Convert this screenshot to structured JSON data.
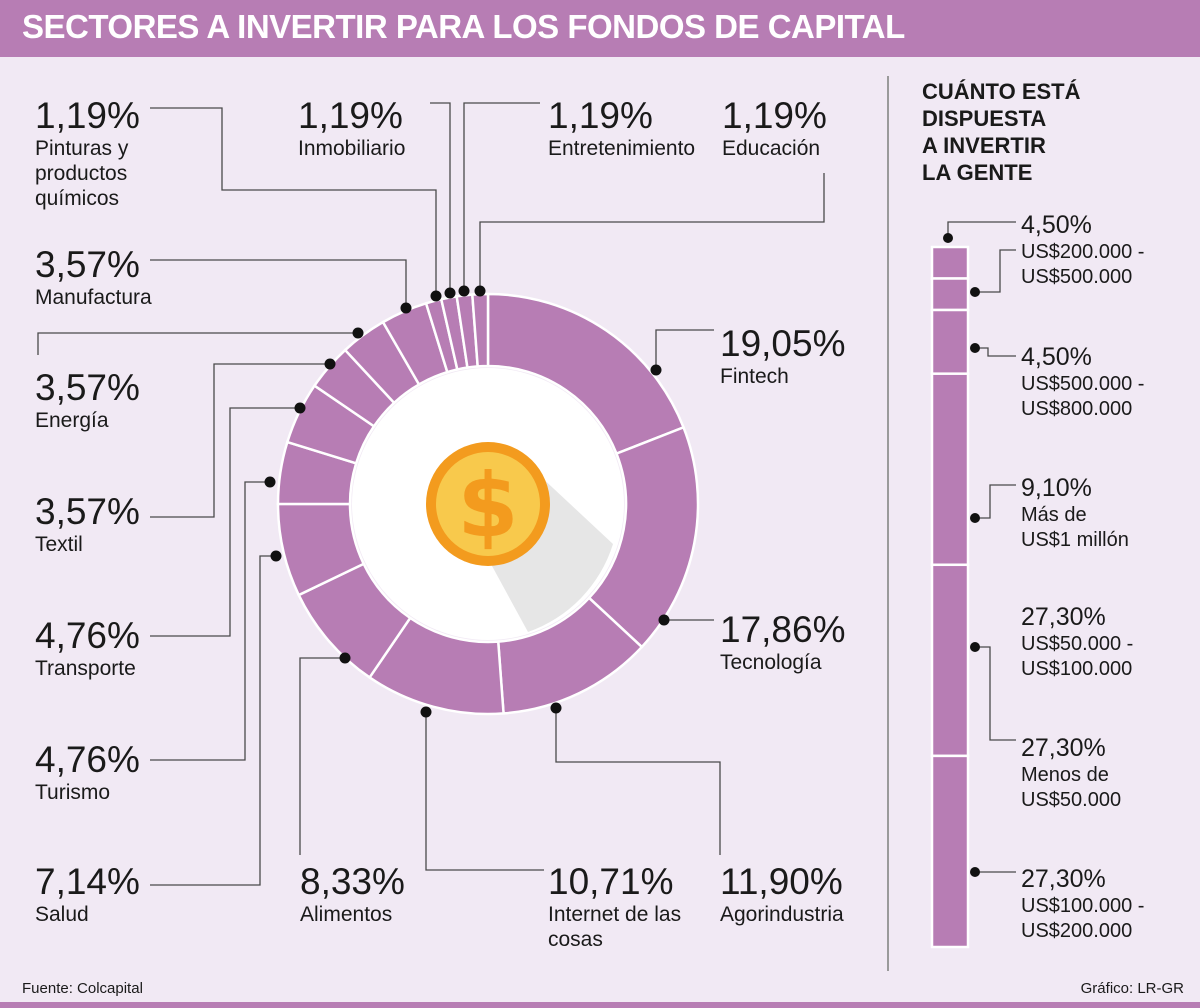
{
  "header": {
    "title": "SECTORES A INVERTIR PARA LOS FONDOS DE CAPITAL"
  },
  "colors": {
    "accent": "#b77db4",
    "background": "#f1e9f4",
    "coin": "#f39b1e",
    "coin_inner": "#f8c94c"
  },
  "icons": {
    "center": "dollar-coin-icon"
  },
  "chart_data": [
    {
      "type": "donut",
      "categories": [
        "Fintech",
        "Tecnología",
        "Agorindustria",
        "Internet de las cosas",
        "Alimentos",
        "Salud",
        "Turismo",
        "Transporte",
        "Textil",
        "Energía",
        "Manufactura",
        "Pinturas y productos químicos",
        "Inmobiliario",
        "Entretenimiento",
        "Educación"
      ],
      "values": [
        19.05,
        17.86,
        11.9,
        10.71,
        8.33,
        7.14,
        4.76,
        4.76,
        3.57,
        3.57,
        3.57,
        1.19,
        1.19,
        1.19,
        1.19
      ],
      "labels": [
        {
          "pct": "19,05%",
          "name": "Fintech"
        },
        {
          "pct": "17,86%",
          "name": "Tecnología"
        },
        {
          "pct": "11,90%",
          "name": "Agorindustria"
        },
        {
          "pct": "10,71%",
          "name": "Internet de las cosas"
        },
        {
          "pct": "8,33%",
          "name": "Alimentos"
        },
        {
          "pct": "7,14%",
          "name": "Salud"
        },
        {
          "pct": "4,76%",
          "name": "Turismo"
        },
        {
          "pct": "4,76%",
          "name": "Transporte"
        },
        {
          "pct": "3,57%",
          "name": "Textil"
        },
        {
          "pct": "3,57%",
          "name": "Energía"
        },
        {
          "pct": "3,57%",
          "name": "Manufactura"
        },
        {
          "pct": "1,19%",
          "name": "Pinturas y productos químicos"
        },
        {
          "pct": "1,19%",
          "name": "Inmobiliario"
        },
        {
          "pct": "1,19%",
          "name": "Entretenimiento"
        },
        {
          "pct": "1,19%",
          "name": "Educación"
        }
      ]
    },
    {
      "type": "bar",
      "title": "CUÁNTO ESTÁ DISPUESTA A INVERTIR LA GENTE",
      "title_lines": [
        "CUÁNTO ESTÁ",
        "DISPUESTA",
        "A INVERTIR",
        "LA GENTE"
      ],
      "categories": [
        "US$200.000 - US$500.000",
        "US$500.000 - US$800.000",
        "Más de US$1 millón",
        "US$50.000 - US$100.000",
        "Menos de US$50.000",
        "US$100.000 - US$200.000"
      ],
      "values": [
        4.5,
        4.5,
        9.1,
        27.3,
        27.3,
        27.3
      ],
      "labels": [
        {
          "pct": "4,50%",
          "line1": "US$200.000 -",
          "line2": "US$500.000"
        },
        {
          "pct": "4,50%",
          "line1": "US$500.000 -",
          "line2": "US$800.000"
        },
        {
          "pct": "9,10%",
          "line1": "Más de",
          "line2": "US$1 millón"
        },
        {
          "pct": "27,30%",
          "line1": "US$50.000 -",
          "line2": "US$100.000"
        },
        {
          "pct": "27,30%",
          "line1": "Menos de",
          "line2": "US$50.000"
        },
        {
          "pct": "27,30%",
          "line1": "US$100.000 -",
          "line2": "US$200.000"
        }
      ]
    }
  ],
  "footer": {
    "source": "Fuente: Colcapital",
    "credit": "Gráfico: LR-GR"
  }
}
